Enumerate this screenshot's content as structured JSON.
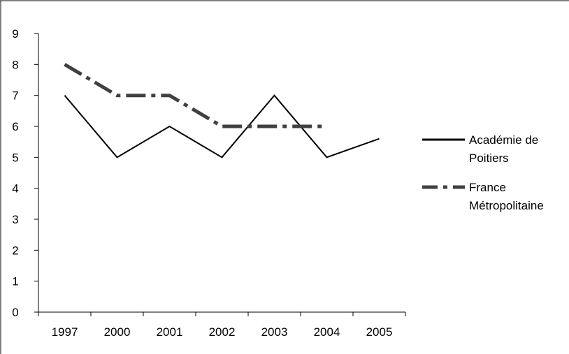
{
  "chart_data": {
    "type": "line",
    "title": "",
    "xlabel": "",
    "ylabel": "",
    "categories": [
      "1997",
      "2000",
      "2001",
      "2002",
      "2003",
      "2004",
      "2005"
    ],
    "ylim": [
      0,
      9
    ],
    "yticks": [
      "0",
      "1",
      "2",
      "3",
      "4",
      "5",
      "6",
      "7",
      "8",
      "9"
    ],
    "grid": false,
    "legend_position": "right",
    "series": [
      {
        "name_lines": [
          "Académie de",
          "Poitiers"
        ],
        "values": [
          7,
          5,
          6,
          5,
          7,
          5,
          5.6
        ],
        "color": "#000000",
        "style": "solid"
      },
      {
        "name_lines": [
          "France",
          "Métropolitaine"
        ],
        "values": [
          8,
          7,
          7,
          6,
          6,
          6,
          null
        ],
        "color": "#404040",
        "style": "dash-dot"
      }
    ]
  }
}
